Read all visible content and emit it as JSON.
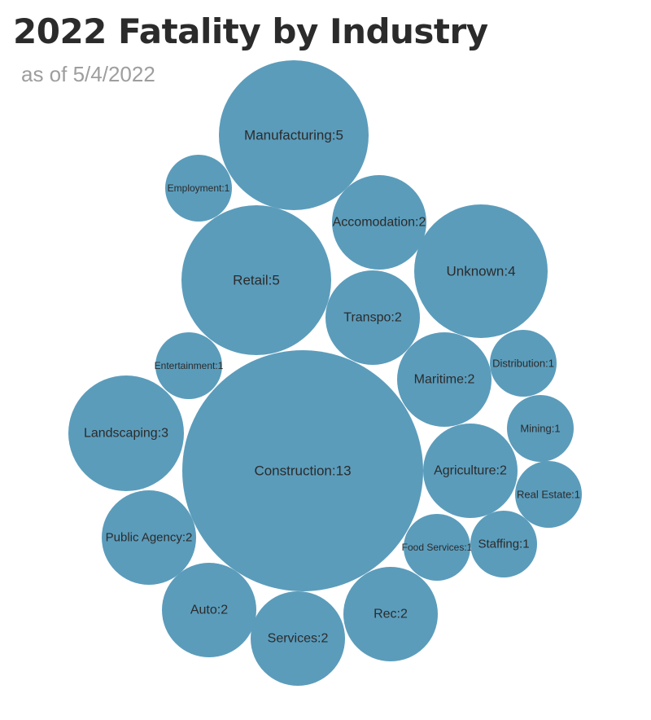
{
  "chart_data": {
    "type": "bubble",
    "title": "2022 Fatality by Industry",
    "subtitle": "as of 5/4/2022",
    "bubble_color": "#5b9cbb",
    "label_color": "#2b2b2b",
    "bubbles": [
      {
        "label": "Manufacturing:5",
        "value": 5
      },
      {
        "label": "Employment:1",
        "value": 1
      },
      {
        "label": "Accomodation:2",
        "value": 2
      },
      {
        "label": "Retail:5",
        "value": 5
      },
      {
        "label": "Unknown:4",
        "value": 4
      },
      {
        "label": "Transpo:2",
        "value": 2
      },
      {
        "label": "Entertainment:1",
        "value": 1
      },
      {
        "label": "Distribution:1",
        "value": 1
      },
      {
        "label": "Maritime:2",
        "value": 2
      },
      {
        "label": "Landscaping:3",
        "value": 3
      },
      {
        "label": "Mining:1",
        "value": 1
      },
      {
        "label": "Construction:13",
        "value": 13
      },
      {
        "label": "Agriculture:2",
        "value": 2
      },
      {
        "label": "Real Estate:1",
        "value": 1
      },
      {
        "label": "Public Agency:2",
        "value": 2
      },
      {
        "label": "Food Services:1",
        "value": 1
      },
      {
        "label": "Staffing:1",
        "value": 1
      },
      {
        "label": "Auto:2",
        "value": 2
      },
      {
        "label": "Rec:2",
        "value": 2
      },
      {
        "label": "Services:2",
        "value": 2
      }
    ]
  }
}
